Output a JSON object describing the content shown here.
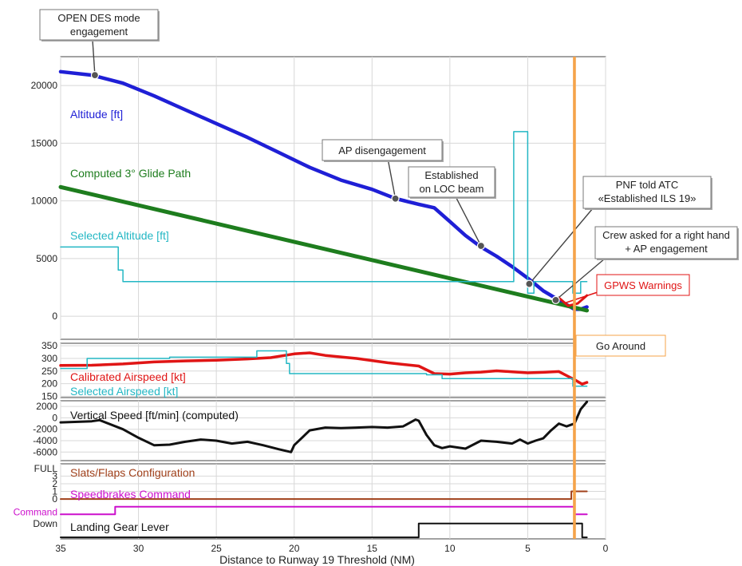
{
  "xaxis": {
    "label": "Distance to Runway 19 Threshold (NM)",
    "range": [
      35,
      0
    ],
    "ticks": [
      35,
      30,
      25,
      20,
      15,
      10,
      5,
      0
    ]
  },
  "go_around": {
    "label": "Go Around",
    "x": 2.0
  },
  "chart_data": [
    {
      "type": "line",
      "panel": "altitude",
      "ylim": [
        -2000,
        22500
      ],
      "yticks": [
        0,
        5000,
        10000,
        15000,
        20000
      ],
      "series": [
        {
          "name": "Altitude [ft]",
          "color": "#1f1fd6",
          "x": [
            35,
            33,
            31,
            29,
            27,
            25,
            23,
            21,
            19,
            17,
            15,
            13.5,
            12,
            11,
            10,
            9,
            8,
            7,
            6,
            5,
            4,
            3,
            2.5,
            2,
            1.6,
            1.2
          ],
          "y": [
            21200,
            20900,
            20200,
            19100,
            17900,
            16700,
            15500,
            14200,
            12900,
            11800,
            11000,
            10200,
            9700,
            9400,
            8200,
            7000,
            6000,
            5200,
            4300,
            3300,
            2200,
            1400,
            1000,
            600,
            600,
            800
          ]
        },
        {
          "name": "Computed 3° Glide Path",
          "color": "#1e7d1e",
          "x": [
            35,
            1.2
          ],
          "y": [
            11200,
            500
          ]
        },
        {
          "name": "Selected Altitude [ft]",
          "color": "#23b7c4",
          "step": true,
          "x": [
            35,
            31.3,
            31.3,
            31,
            31,
            5.9,
            5.9,
            5.0,
            5.0,
            4.6,
            4.6,
            2.1,
            2.1,
            1.6,
            1.6,
            1.2
          ],
          "y": [
            6000,
            6000,
            4000,
            4000,
            3000,
            3000,
            16000,
            16000,
            2000,
            2000,
            3000,
            3000,
            2000,
            2000,
            3000,
            3000
          ]
        },
        {
          "name": "",
          "color": "#e01515",
          "x": [
            3.0,
            2.4,
            1.8,
            1.2
          ],
          "y": [
            1600,
            900,
            1100,
            1800
          ]
        }
      ],
      "annotations": [
        {
          "text": [
            "OPEN DES mode",
            "engagement"
          ],
          "x": 32.8,
          "y": 20900
        },
        {
          "text": [
            "AP disengagement"
          ],
          "x": 13.5,
          "y": 10200
        },
        {
          "text": [
            "Established",
            "on LOC beam"
          ],
          "x": 8.0,
          "y": 6100
        },
        {
          "text": [
            "PNF told ATC",
            "«Established ILS 19»"
          ],
          "x": 4.9,
          "y": 2800
        },
        {
          "text": [
            "Crew asked for a right hand",
            "+ AP engagement"
          ],
          "x": 3.2,
          "y": 1400
        }
      ],
      "warning_label": "GPWS Warnings"
    },
    {
      "type": "line",
      "panel": "airspeed",
      "ylim": [
        145,
        360
      ],
      "yticks": [
        150,
        200,
        250,
        300,
        350
      ],
      "series": [
        {
          "name": "Calibrated Airspeed [kt]",
          "color": "#e01515",
          "x": [
            35,
            33,
            31,
            29,
            27,
            25,
            23,
            21.5,
            20,
            19,
            18,
            16,
            14,
            12,
            11,
            10,
            9,
            8,
            7,
            6,
            5,
            4,
            3,
            2.5,
            2,
            1.5,
            1.2
          ],
          "y": [
            272,
            273,
            278,
            286,
            290,
            293,
            298,
            303,
            318,
            322,
            312,
            300,
            283,
            270,
            240,
            238,
            243,
            246,
            251,
            247,
            243,
            245,
            248,
            232,
            216,
            198,
            205
          ]
        },
        {
          "name": "Selected Airspeed [kt]",
          "color": "#23b7c4",
          "step": true,
          "x": [
            35,
            33.3,
            33.3,
            28,
            28,
            22.4,
            22.4,
            20.5,
            20.5,
            20.3,
            20.3,
            11.5,
            11.5,
            10.5,
            10.5,
            2.1,
            2.1,
            1.2
          ],
          "y": [
            260,
            260,
            300,
            300,
            305,
            305,
            330,
            330,
            280,
            280,
            240,
            240,
            235,
            235,
            220,
            220,
            190,
            190
          ]
        }
      ]
    },
    {
      "type": "line",
      "panel": "vertical_speed",
      "ylim": [
        -7500,
        3000
      ],
      "yticks": [
        -6000,
        -4000,
        -2000,
        0,
        2000
      ],
      "series": [
        {
          "name": "Vertical Speed [ft/min] (computed)",
          "color": "#111111",
          "x": [
            35,
            33,
            32.5,
            31,
            30,
            29,
            28,
            27,
            26,
            25,
            24,
            23,
            22,
            21,
            20.2,
            20,
            19,
            18,
            17,
            16,
            15,
            14,
            13,
            12.2,
            12,
            11.5,
            11,
            10.5,
            10,
            9,
            8,
            7,
            6,
            5.5,
            5,
            4.5,
            4,
            3.5,
            3,
            2.5,
            2,
            1.6,
            1.2
          ],
          "y": [
            -800,
            -600,
            -400,
            -2000,
            -3500,
            -4800,
            -4700,
            -4200,
            -3800,
            -4000,
            -4500,
            -4200,
            -4800,
            -5500,
            -6000,
            -4800,
            -2200,
            -1700,
            -1800,
            -1700,
            -1600,
            -1700,
            -1500,
            -300,
            -500,
            -3000,
            -4800,
            -5300,
            -5000,
            -5400,
            -4000,
            -4200,
            -4500,
            -3800,
            -4500,
            -4000,
            -3600,
            -2200,
            -1000,
            -1500,
            -1000,
            1500,
            2800
          ]
        }
      ]
    },
    {
      "type": "line",
      "panel": "configuration",
      "ylim": [
        -5.2,
        4.6
      ],
      "yticks": [
        0,
        1,
        2,
        3
      ],
      "ytick_labels": [
        {
          "label": "FULL",
          "y": 4.0
        },
        {
          "label": "Command",
          "y": -1.7
        },
        {
          "label": "Down",
          "y": -3.2
        }
      ],
      "series": [
        {
          "name": "Slats/Flaps Configuration",
          "color": "#a0401a",
          "step": true,
          "x": [
            35,
            2.2,
            2.2,
            1.2
          ],
          "y": [
            0,
            0,
            1,
            1
          ]
        },
        {
          "name": "Speedbrakes Command",
          "color": "#cc10cc",
          "step": true,
          "x": [
            35,
            31.5,
            31.5,
            2.0,
            2.0,
            1.2
          ],
          "y": [
            -2.0,
            -2.0,
            -1.0,
            -1.0,
            -2.0,
            -2.0
          ]
        },
        {
          "name": "Landing Gear Lever",
          "color": "#111111",
          "step": true,
          "x": [
            35,
            12,
            12,
            1.5,
            1.5,
            1.2
          ],
          "y": [
            -5.0,
            -5.0,
            -3.2,
            -3.2,
            -5.0,
            -5.0
          ]
        }
      ]
    }
  ]
}
